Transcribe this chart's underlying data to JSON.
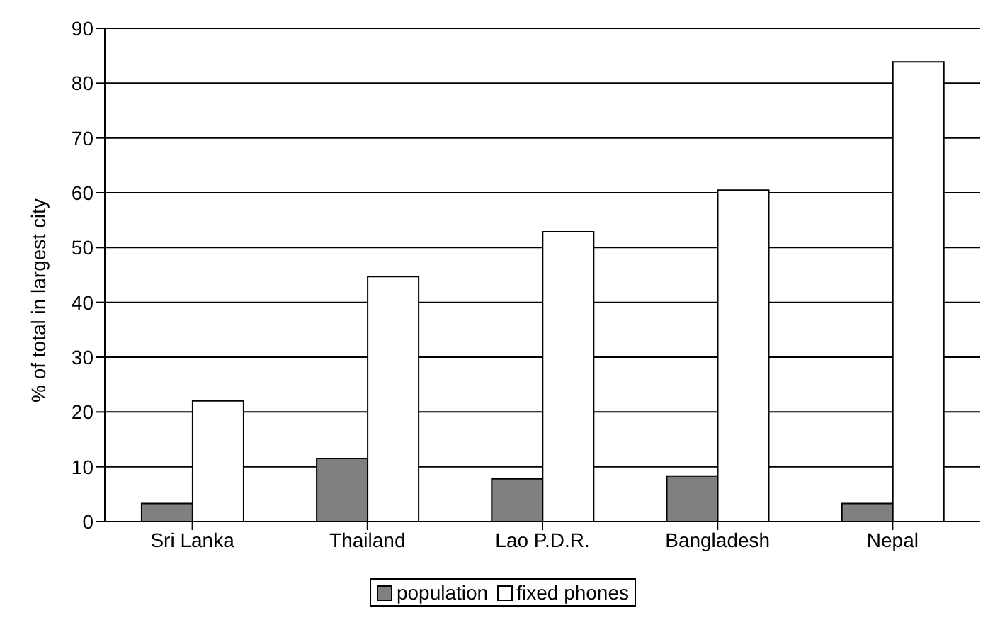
{
  "chart_data": {
    "type": "bar",
    "ylabel": "% of total in largest city",
    "categories": [
      "Sri Lanka",
      "Thailand",
      "Lao P.D.R.",
      "Bangladesh",
      "Nepal"
    ],
    "series": [
      {
        "name": "population",
        "color": "#808080",
        "values": [
          3.3,
          11.5,
          7.8,
          8.3,
          3.3
        ]
      },
      {
        "name": "fixed phones",
        "color": "#ffffff",
        "values": [
          22.0,
          44.7,
          52.9,
          60.5,
          83.9
        ]
      }
    ],
    "ylim": [
      0,
      90
    ],
    "yticks": [
      0,
      10,
      20,
      30,
      40,
      50,
      60,
      70,
      80,
      90
    ],
    "grid": "y",
    "legend": "bottom"
  }
}
